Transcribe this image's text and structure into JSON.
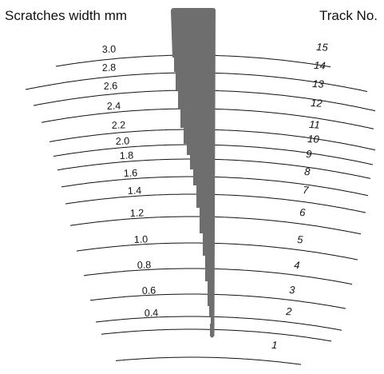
{
  "header": {
    "left_title": "Scratches width mm",
    "right_title": "Track No."
  },
  "tracks": [
    {
      "number": "15",
      "width": "3.0"
    },
    {
      "number": "14",
      "width": "2.8"
    },
    {
      "number": "13",
      "width": "2.6"
    },
    {
      "number": "12",
      "width": "2.4"
    },
    {
      "number": "11",
      "width": "2.2"
    },
    {
      "number": "10",
      "width": "2.0"
    },
    {
      "number": "9",
      "width": "1.8"
    },
    {
      "number": "8",
      "width": "1.6"
    },
    {
      "number": "7",
      "width": "1.4"
    },
    {
      "number": "6",
      "width": "1.2"
    },
    {
      "number": "5",
      "width": "1.0"
    },
    {
      "number": "4",
      "width": "0.8"
    },
    {
      "number": "3",
      "width": "0.6"
    },
    {
      "number": "2",
      "width": "0.4"
    },
    {
      "number": "1",
      "width": ""
    }
  ],
  "colors": {
    "wedge": "#6e6e6e",
    "arc": "#111111",
    "text": "#111111"
  }
}
